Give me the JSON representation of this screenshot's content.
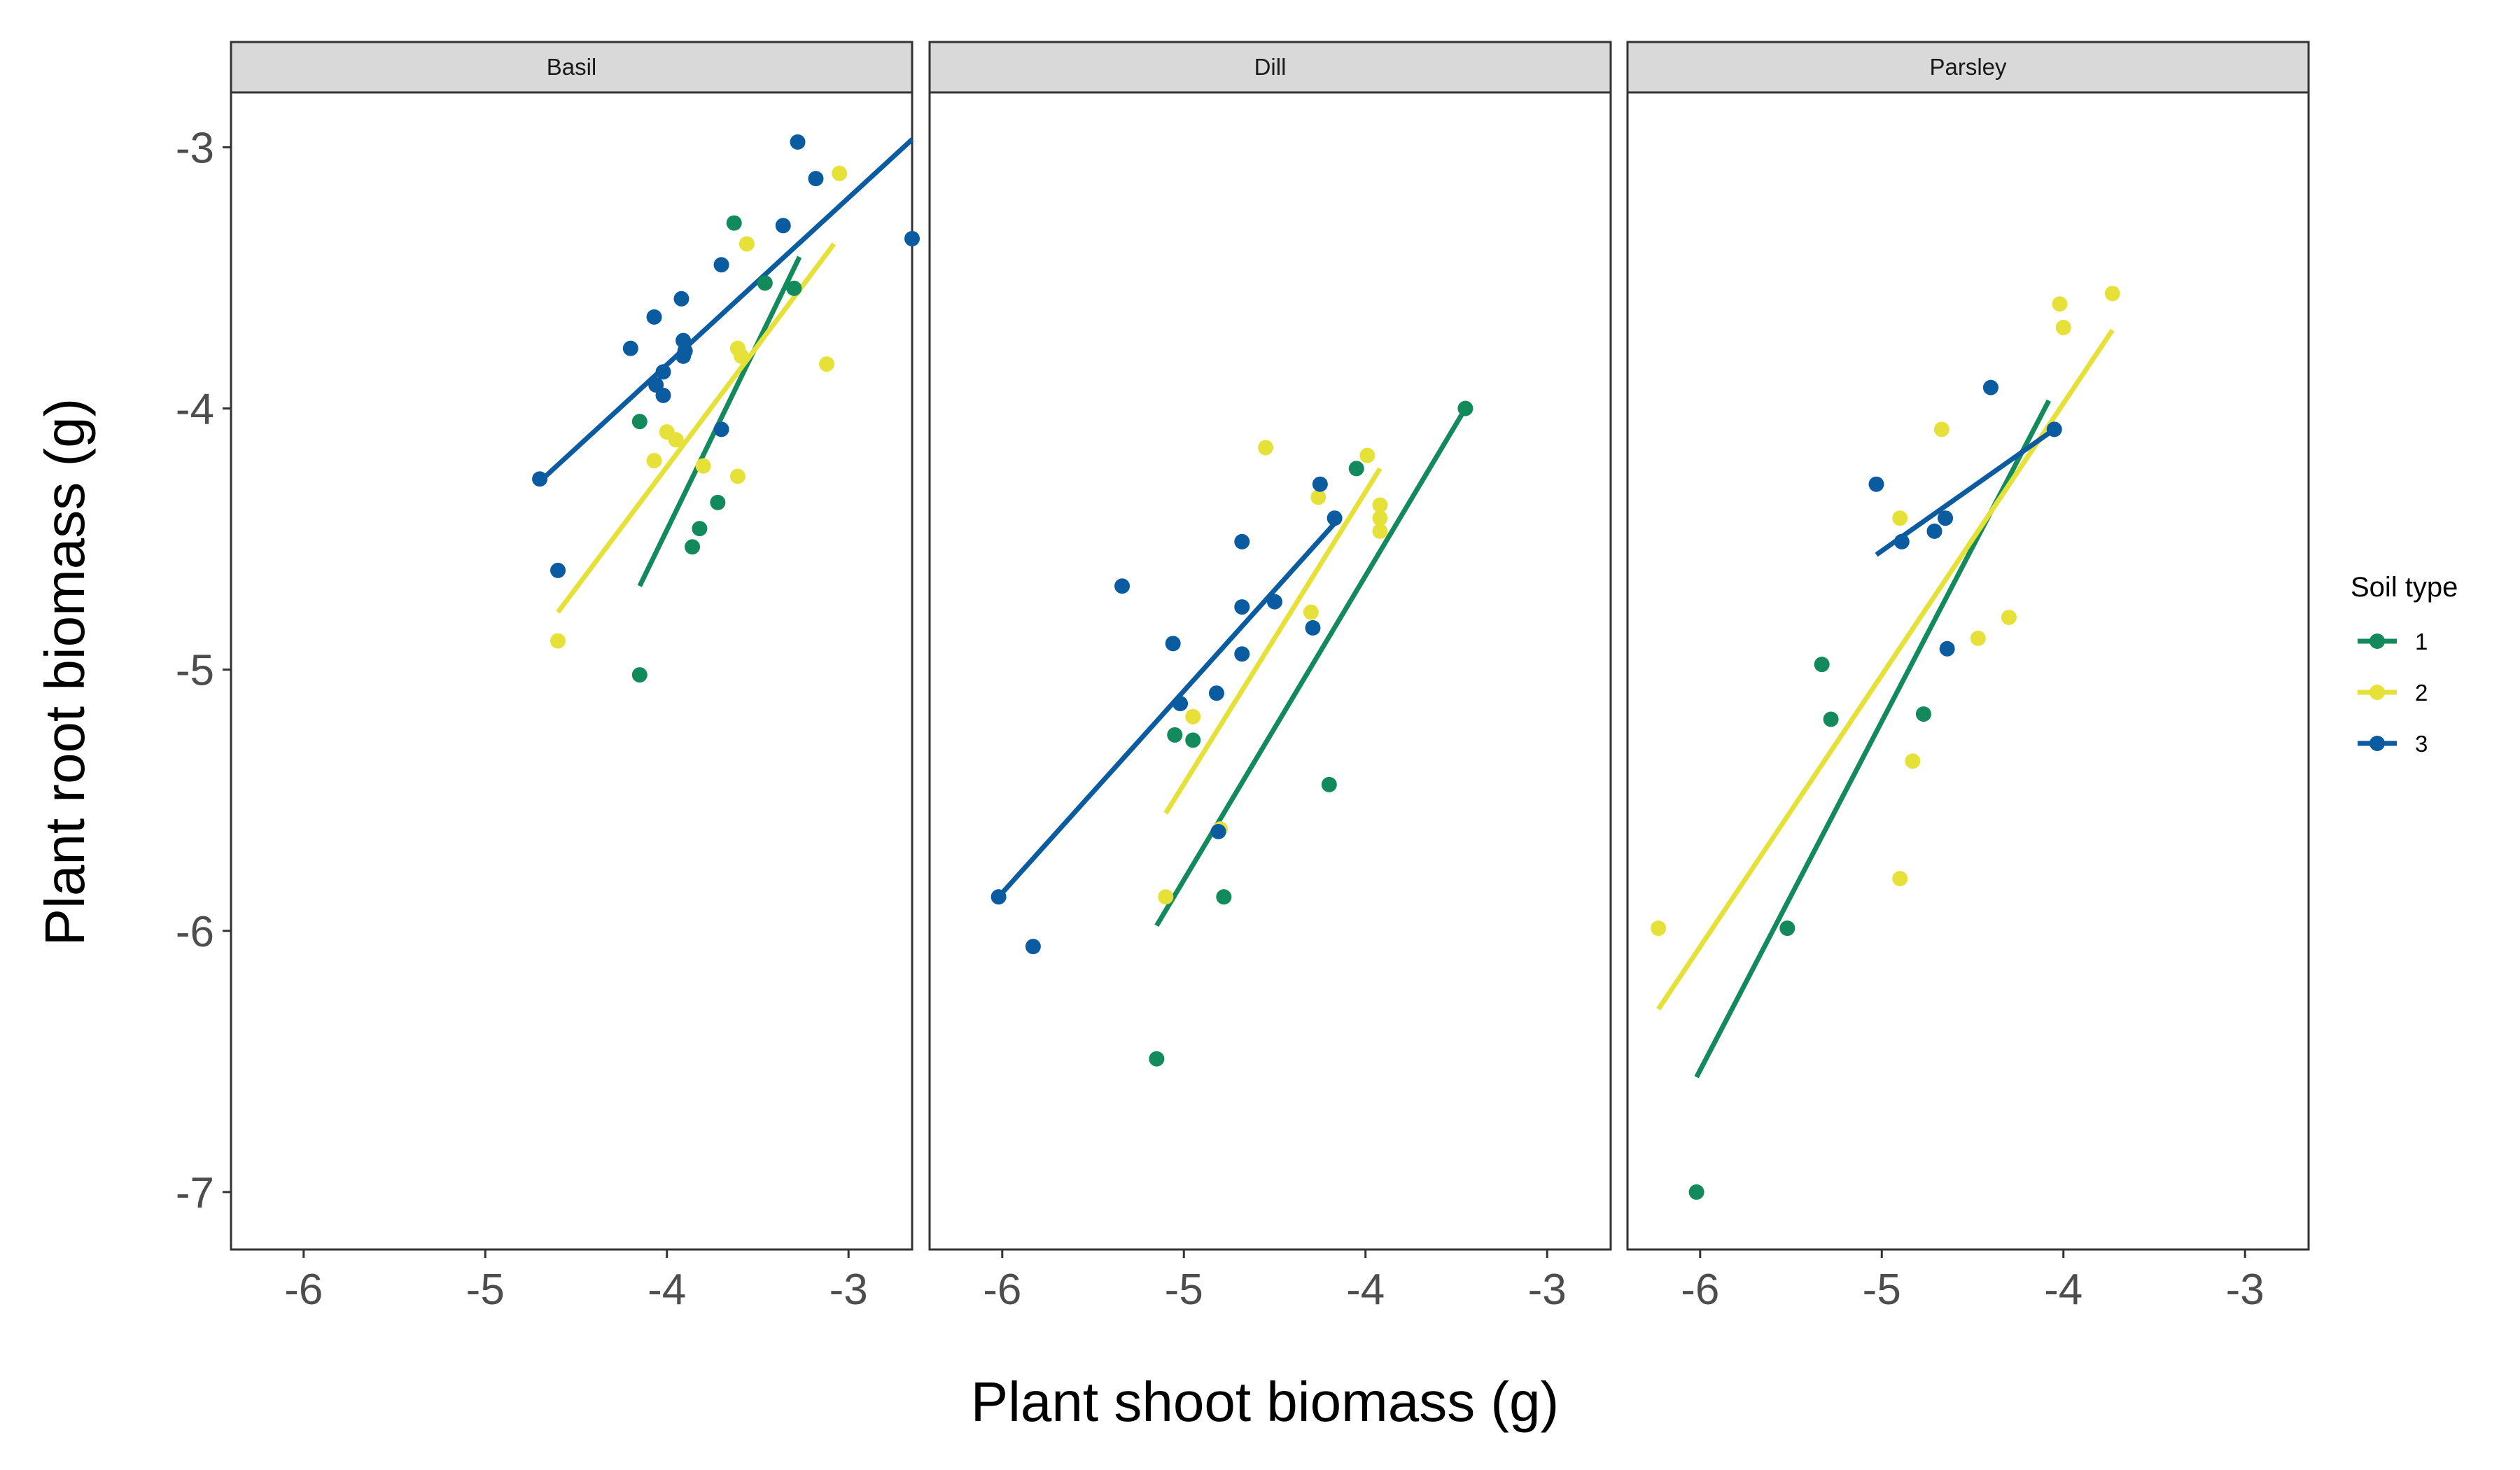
{
  "chart_data": {
    "type": "scatter",
    "xlabel": "Plant shoot biomass (g)",
    "ylabel": "Plant root biomass (g)",
    "xlim": [
      -6.4,
      -2.65
    ],
    "ylim": [
      -7.22,
      -2.79
    ],
    "x_ticks": [
      -6,
      -5,
      -4,
      -3
    ],
    "y_ticks": [
      -7,
      -6,
      -5,
      -4,
      -3
    ],
    "x_tick_labels": [
      "-6",
      "-5",
      "-4",
      "-3"
    ],
    "y_tick_labels": [
      "-7",
      "-6",
      "-5",
      "-4",
      "-3"
    ],
    "grid": false,
    "legend": {
      "title": "Soil type",
      "position": "right",
      "entries": [
        {
          "label": "1",
          "color": "#138a5b"
        },
        {
          "label": "2",
          "color": "#e6e139"
        },
        {
          "label": "3",
          "color": "#0b5ba1"
        }
      ]
    },
    "facets": [
      {
        "label": "Basil",
        "series": [
          {
            "name": "1",
            "color": "#138a5b",
            "points": [
              [
                -3.63,
                -3.29
              ],
              [
                -3.3,
                -3.54
              ],
              [
                -3.46,
                -3.52
              ],
              [
                -4.15,
                -4.05
              ],
              [
                -3.72,
                -4.36
              ],
              [
                -3.82,
                -4.46
              ],
              [
                -3.86,
                -4.53
              ],
              [
                -4.15,
                -5.02
              ]
            ],
            "fit": [
              [
                -4.15,
                -4.68
              ],
              [
                -3.27,
                -3.42
              ]
            ]
          },
          {
            "name": "2",
            "color": "#e6e139",
            "points": [
              [
                -3.05,
                -3.1
              ],
              [
                -3.56,
                -3.37
              ],
              [
                -3.61,
                -3.77
              ],
              [
                -3.59,
                -3.8
              ],
              [
                -3.12,
                -3.83
              ],
              [
                -4.0,
                -4.09
              ],
              [
                -3.95,
                -4.12
              ],
              [
                -4.07,
                -4.2
              ],
              [
                -3.8,
                -4.22
              ],
              [
                -3.61,
                -4.26
              ],
              [
                -4.6,
                -4.89
              ]
            ],
            "fit": [
              [
                -4.6,
                -4.78
              ],
              [
                -3.08,
                -3.37
              ]
            ]
          },
          {
            "name": "3",
            "color": "#0b5ba1",
            "points": [
              [
                -3.28,
                -2.98
              ],
              [
                -3.18,
                -3.12
              ],
              [
                -3.36,
                -3.3
              ],
              [
                -2.65,
                -3.35
              ],
              [
                -3.7,
                -3.45
              ],
              [
                -3.92,
                -3.58
              ],
              [
                -4.07,
                -3.65
              ],
              [
                -4.2,
                -3.77
              ],
              [
                -3.91,
                -3.74
              ],
              [
                -3.9,
                -3.78
              ],
              [
                -3.91,
                -3.8
              ],
              [
                -4.02,
                -3.86
              ],
              [
                -4.06,
                -3.91
              ],
              [
                -4.02,
                -3.95
              ],
              [
                -3.7,
                -4.08
              ],
              [
                -4.7,
                -4.27
              ],
              [
                -4.6,
                -4.62
              ]
            ],
            "fit": [
              [
                -4.7,
                -4.28
              ],
              [
                -2.65,
                -2.97
              ]
            ]
          }
        ]
      },
      {
        "label": "Dill",
        "series": [
          {
            "name": "1",
            "color": "#138a5b",
            "points": [
              [
                -3.45,
                -4.0
              ],
              [
                -4.05,
                -4.23
              ],
              [
                -5.05,
                -5.25
              ],
              [
                -4.95,
                -5.27
              ],
              [
                -4.2,
                -5.44
              ],
              [
                -4.78,
                -5.87
              ],
              [
                -5.15,
                -6.49
              ]
            ],
            "fit": [
              [
                -5.15,
                -5.98
              ],
              [
                -3.45,
                -4.0
              ]
            ]
          },
          {
            "name": "2",
            "color": "#e6e139",
            "points": [
              [
                -4.55,
                -4.15
              ],
              [
                -3.99,
                -4.18
              ],
              [
                -4.26,
                -4.34
              ],
              [
                -3.92,
                -4.37
              ],
              [
                -3.92,
                -4.42
              ],
              [
                -3.92,
                -4.47
              ],
              [
                -4.3,
                -4.78
              ],
              [
                -4.95,
                -5.18
              ],
              [
                -4.8,
                -5.61
              ],
              [
                -5.1,
                -5.87
              ]
            ],
            "fit": [
              [
                -5.1,
                -5.55
              ],
              [
                -3.92,
                -4.23
              ]
            ]
          },
          {
            "name": "3",
            "color": "#0b5ba1",
            "points": [
              [
                -4.25,
                -4.29
              ],
              [
                -4.17,
                -4.42
              ],
              [
                -4.68,
                -4.51
              ],
              [
                -5.34,
                -4.68
              ],
              [
                -4.5,
                -4.74
              ],
              [
                -4.68,
                -4.76
              ],
              [
                -4.29,
                -4.84
              ],
              [
                -5.06,
                -4.9
              ],
              [
                -4.68,
                -4.94
              ],
              [
                -5.02,
                -5.13
              ],
              [
                -4.82,
                -5.09
              ],
              [
                -4.81,
                -5.62
              ],
              [
                -6.02,
                -5.87
              ],
              [
                -5.83,
                -6.06
              ]
            ],
            "fit": [
              [
                -6.02,
                -5.87
              ],
              [
                -4.17,
                -4.44
              ]
            ]
          }
        ]
      },
      {
        "label": "Parsley",
        "series": [
          {
            "name": "1",
            "color": "#138a5b",
            "points": [
              [
                -5.33,
                -4.98
              ],
              [
                -5.28,
                -5.19
              ],
              [
                -4.77,
                -5.17
              ],
              [
                -5.52,
                -5.99
              ],
              [
                -6.02,
                -7.0
              ]
            ],
            "fit": [
              [
                -6.02,
                -6.56
              ],
              [
                -4.08,
                -3.97
              ]
            ]
          },
          {
            "name": "2",
            "color": "#e6e139",
            "points": [
              [
                -3.73,
                -3.56
              ],
              [
                -4.02,
                -3.6
              ],
              [
                -4.0,
                -3.69
              ],
              [
                -4.67,
                -4.08
              ],
              [
                -4.9,
                -4.42
              ],
              [
                -4.3,
                -4.8
              ],
              [
                -4.47,
                -4.88
              ],
              [
                -4.83,
                -5.35
              ],
              [
                -4.9,
                -5.8
              ],
              [
                -6.23,
                -5.99
              ]
            ],
            "fit": [
              [
                -6.23,
                -6.3
              ],
              [
                -3.73,
                -3.7
              ]
            ]
          },
          {
            "name": "3",
            "color": "#0b5ba1",
            "points": [
              [
                -4.4,
                -3.92
              ],
              [
                -4.05,
                -4.08
              ],
              [
                -5.03,
                -4.29
              ],
              [
                -4.65,
                -4.42
              ],
              [
                -4.71,
                -4.47
              ],
              [
                -4.89,
                -4.51
              ],
              [
                -4.64,
                -4.92
              ]
            ],
            "fit": [
              [
                -5.03,
                -4.56
              ],
              [
                -4.05,
                -4.08
              ]
            ]
          }
        ]
      }
    ]
  }
}
